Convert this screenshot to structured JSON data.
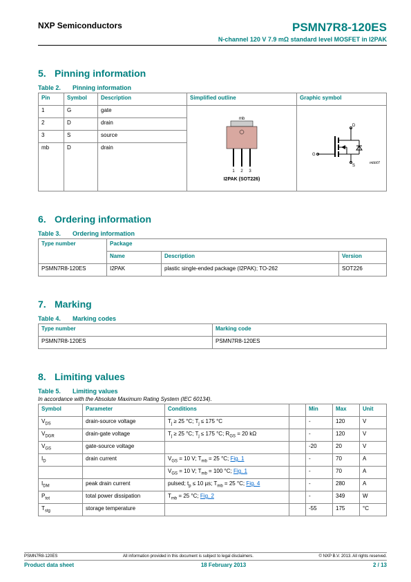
{
  "header": {
    "company": "NXP Semiconductors",
    "product": "PSMN7R8-120ES",
    "subtitle": "N-channel 120 V 7.9 mΩ standard level MOSFET in I2PAK"
  },
  "sections": {
    "s5": {
      "num": "5.",
      "title": "Pinning information"
    },
    "s6": {
      "num": "6.",
      "title": "Ordering information"
    },
    "s7": {
      "num": "7.",
      "title": "Marking"
    },
    "s8": {
      "num": "8.",
      "title": "Limiting values"
    }
  },
  "table2": {
    "caption_num": "Table 2.",
    "caption_txt": "Pinning information",
    "cols": {
      "pin": "Pin",
      "symbol": "Symbol",
      "desc": "Description",
      "outline": "Simplified outline",
      "graphic": "Graphic symbol"
    },
    "rows": [
      {
        "pin": "1",
        "symbol": "G",
        "desc": "gate"
      },
      {
        "pin": "2",
        "symbol": "D",
        "desc": "drain"
      },
      {
        "pin": "3",
        "symbol": "S",
        "desc": "source"
      },
      {
        "pin": "mb",
        "symbol": "D",
        "desc": "drain"
      }
    ],
    "pkg_label_top": "mb",
    "pkg_pins": [
      "1",
      "2",
      "3"
    ],
    "pkg_name": "I2PAK (SOT226)",
    "sym_labels": {
      "g": "G",
      "d": "D",
      "s": "S",
      "ref": "mbb076"
    }
  },
  "table3": {
    "caption_num": "Table 3.",
    "caption_txt": "Ordering information",
    "cols": {
      "type": "Type number",
      "pkg": "Package",
      "name": "Name",
      "desc": "Description",
      "ver": "Version"
    },
    "rows": [
      {
        "type": "PSMN7R8-120ES",
        "name": "I2PAK",
        "desc": "plastic single-ended package (I2PAK); TO-262",
        "ver": "SOT226"
      }
    ]
  },
  "table4": {
    "caption_num": "Table 4.",
    "caption_txt": "Marking codes",
    "cols": {
      "type": "Type number",
      "code": "Marking code"
    },
    "rows": [
      {
        "type": "PSMN7R8-120ES",
        "code": "PSMN7R8-120ES"
      }
    ]
  },
  "table5": {
    "caption_num": "Table 5.",
    "caption_txt": "Limiting values",
    "note": "In accordance with the Absolute Maximum Rating System (IEC 60134).",
    "cols": {
      "sym": "Symbol",
      "param": "Parameter",
      "cond": "Conditions",
      "min": "Min",
      "max": "Max",
      "unit": "Unit"
    },
    "rows": [
      {
        "sym": "V<sub>DS</sub>",
        "param": "drain-source voltage",
        "cond": "T<sub>j</sub> ≥ 25 °C; T<sub>j</sub> ≤ 175 °C",
        "min": "-",
        "max": "120",
        "unit": "V"
      },
      {
        "sym": "V<sub>DGR</sub>",
        "param": "drain-gate voltage",
        "cond": "T<sub>j</sub> ≥ 25 °C; T<sub>j</sub> ≤ 175 °C; R<sub>GS</sub> = 20 kΩ",
        "min": "-",
        "max": "120",
        "unit": "V"
      },
      {
        "sym": "V<sub>GS</sub>",
        "param": "gate-source voltage",
        "cond": "",
        "min": "-20",
        "max": "20",
        "unit": "V"
      },
      {
        "sym": "I<sub>D</sub>",
        "param": "drain current",
        "cond": "V<sub>GS</sub> = 10 V; T<sub>mb</sub> = 25 °C; <a class='fig-link'>Fig. 1</a>",
        "min": "-",
        "max": "70",
        "unit": "A"
      },
      {
        "sym": "",
        "param": "",
        "cond": "V<sub>GS</sub> = 10 V; T<sub>mb</sub> = 100 °C; <a class='fig-link'>Fig. 1</a>",
        "min": "-",
        "max": "70",
        "unit": "A"
      },
      {
        "sym": "I<sub>DM</sub>",
        "param": "peak drain current",
        "cond": "pulsed; t<sub>p</sub> ≤ 10 µs; T<sub>mb</sub> = 25 °C; <a class='fig-link'>Fig. 4</a>",
        "min": "-",
        "max": "280",
        "unit": "A"
      },
      {
        "sym": "P<sub>tot</sub>",
        "param": "total power dissipation",
        "cond": "T<sub>mb</sub> = 25 °C; <a class='fig-link'>Fig. 2</a>",
        "min": "-",
        "max": "349",
        "unit": "W"
      },
      {
        "sym": "T<sub>stg</sub>",
        "param": "storage temperature",
        "cond": "",
        "min": "-55",
        "max": "175",
        "unit": "°C"
      }
    ]
  },
  "footer": {
    "left1": "PSMN7R8-120ES",
    "mid1": "All information provided in this document is subject to legal disclaimers.",
    "right1": "© NXP B.V. 2013. All rights reserved.",
    "left2": "Product data sheet",
    "mid2": "18 February 2013",
    "right2": "2 / 13"
  },
  "colors": {
    "teal": "#008080",
    "link": "#0066cc",
    "border": "#888888",
    "pkg_body": "#d8a8a0",
    "pkg_tab": "#cccccc"
  }
}
